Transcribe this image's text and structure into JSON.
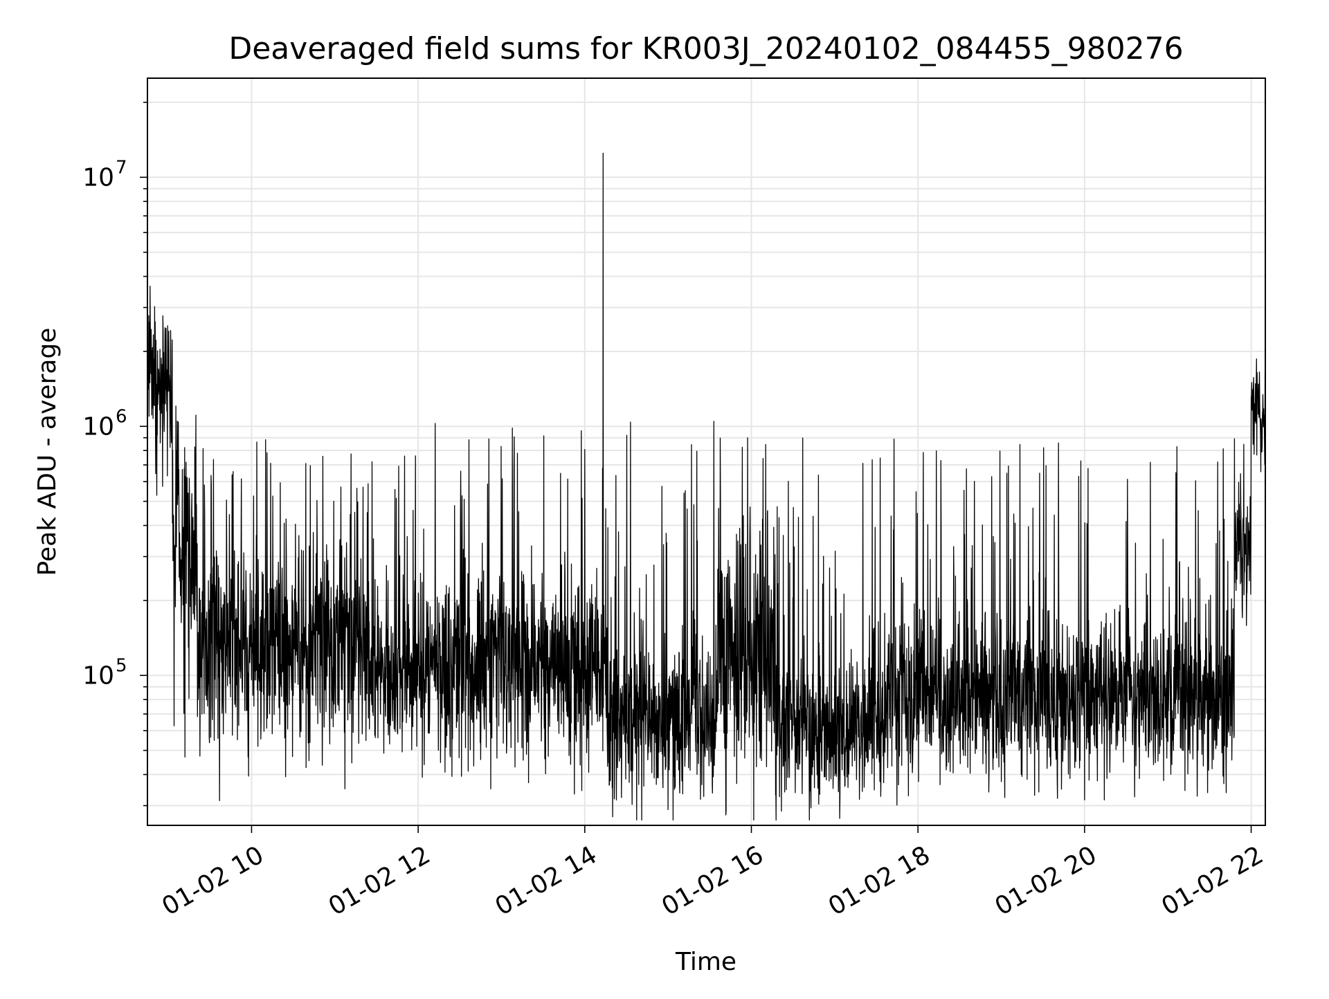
{
  "chart_data": {
    "type": "line",
    "title": "Deaveraged field sums for KR003J_20240102_084455_980276",
    "xlabel": "Time",
    "ylabel": "Peak ADU - average",
    "yscale": "log",
    "xlim": [
      8.75,
      22.17
    ],
    "ylim": [
      25000,
      25000000
    ],
    "grid": true,
    "legend": "none",
    "x_ticks": [
      {
        "value": 10,
        "label": "01-02 10"
      },
      {
        "value": 12,
        "label": "01-02 12"
      },
      {
        "value": 14,
        "label": "01-02 14"
      },
      {
        "value": 16,
        "label": "01-02 16"
      },
      {
        "value": 18,
        "label": "01-02 18"
      },
      {
        "value": 20,
        "label": "01-02 20"
      },
      {
        "value": 22,
        "label": "01-02 22"
      }
    ],
    "y_ticks": [
      {
        "value": 100000,
        "base": "10",
        "exp": "5"
      },
      {
        "value": 1000000,
        "base": "10",
        "exp": "6"
      },
      {
        "value": 10000000,
        "base": "10",
        "exp": "7"
      }
    ],
    "line_color": "#000000",
    "grid_color": "#e6e6e6",
    "series": [
      {
        "name": "field sums",
        "segments": [
          {
            "t0": 8.75,
            "t1": 9.05,
            "base": 1400000,
            "spread": 0.35,
            "spike_prob": 0.25,
            "spike_max": 3100000
          },
          {
            "t0": 9.05,
            "t1": 9.35,
            "base": 300000,
            "spread": 0.55,
            "spike_prob": 0.18,
            "spike_max": 900000
          },
          {
            "t0": 9.35,
            "t1": 11.5,
            "base": 130000,
            "spread": 0.45,
            "spike_prob": 0.14,
            "spike_max": 900000
          },
          {
            "t0": 11.5,
            "t1": 14.25,
            "base": 105000,
            "spread": 0.4,
            "spike_prob": 0.12,
            "spike_max": 1050000
          },
          {
            "t0": 14.25,
            "t1": 15.6,
            "base": 65000,
            "spread": 0.35,
            "spike_prob": 0.13,
            "spike_max": 1050000
          },
          {
            "t0": 15.6,
            "t1": 16.3,
            "base": 110000,
            "spread": 0.6,
            "spike_prob": 0.2,
            "spike_max": 950000
          },
          {
            "t0": 16.3,
            "t1": 17.6,
            "base": 60000,
            "spread": 0.3,
            "spike_prob": 0.12,
            "spike_max": 950000
          },
          {
            "t0": 17.6,
            "t1": 21.8,
            "base": 80000,
            "spread": 0.35,
            "spike_prob": 0.13,
            "spike_max": 900000
          },
          {
            "t0": 21.8,
            "t1": 22.0,
            "base": 300000,
            "spread": 0.35,
            "spike_prob": 0.2,
            "spike_max": 700000
          },
          {
            "t0": 22.0,
            "t1": 22.17,
            "base": 1100000,
            "spread": 0.25,
            "spike_prob": 0.25,
            "spike_max": 1900000
          }
        ],
        "notable_points": [
          {
            "x": 14.22,
            "y": 12500000
          },
          {
            "x": 9.2,
            "y": 47000
          },
          {
            "x": 12.05,
            "y": 39000
          },
          {
            "x": 16.4,
            "y": 34000
          },
          {
            "x": 18.85,
            "y": 34000
          },
          {
            "x": 19.4,
            "y": 33000
          }
        ]
      }
    ]
  }
}
